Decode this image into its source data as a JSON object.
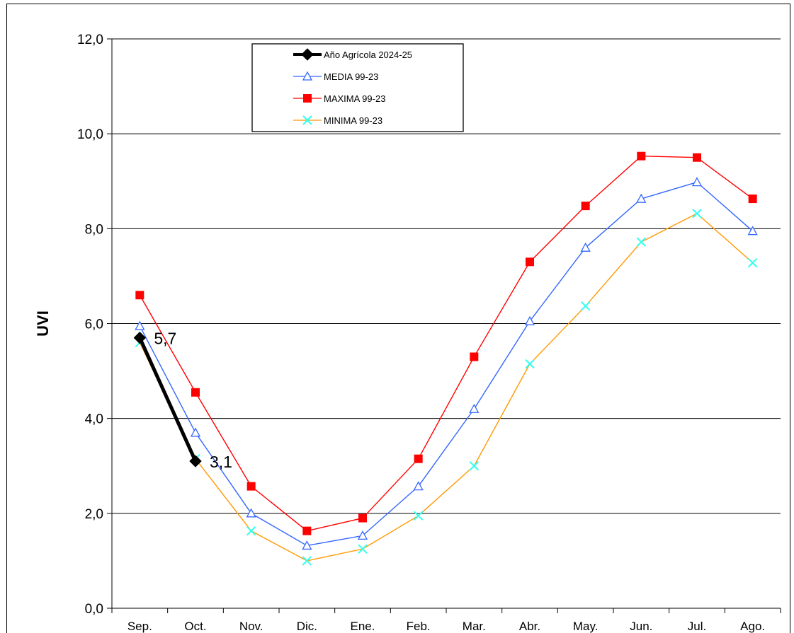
{
  "chart_data": {
    "type": "line",
    "title": "",
    "xlabel": "",
    "ylabel": "UVI",
    "categories": [
      "Sep.",
      "Oct.",
      "Nov.",
      "Dic.",
      "Ene.",
      "Feb.",
      "Mar.",
      "Abr.",
      "May.",
      "Jun.",
      "Jul.",
      "Ago."
    ],
    "ylim": [
      0,
      12
    ],
    "yticks": [
      "0,0",
      "2,0",
      "4,0",
      "6,0",
      "8,0",
      "10,0",
      "12,0"
    ],
    "grid": true,
    "legend_position": "top-center",
    "series": [
      {
        "name": "Año  Agrícola 2024-25",
        "color": "#000000",
        "marker": "diamond",
        "values": [
          5.7,
          3.1,
          null,
          null,
          null,
          null,
          null,
          null,
          null,
          null,
          null,
          null
        ],
        "labels": [
          "5,7",
          "3,1"
        ]
      },
      {
        "name": "MEDIA 99-23",
        "color": "#3366ff",
        "marker": "triangle",
        "values": [
          5.95,
          3.7,
          2.0,
          1.32,
          1.53,
          2.57,
          4.2,
          6.05,
          7.6,
          8.63,
          8.98,
          7.95
        ]
      },
      {
        "name": "MAXIMA 99-23",
        "color": "#ff0000",
        "marker": "square",
        "values": [
          6.6,
          4.55,
          2.57,
          1.63,
          1.9,
          3.15,
          5.3,
          7.3,
          8.48,
          9.53,
          9.5,
          8.63
        ]
      },
      {
        "name": "MINIMA 99-23",
        "color": "#ff9900",
        "marker": "x",
        "marker_color": "#33ffee",
        "values": [
          5.6,
          3.15,
          1.63,
          1.0,
          1.25,
          1.95,
          3.0,
          5.15,
          6.37,
          7.72,
          8.32,
          7.28
        ]
      }
    ]
  }
}
